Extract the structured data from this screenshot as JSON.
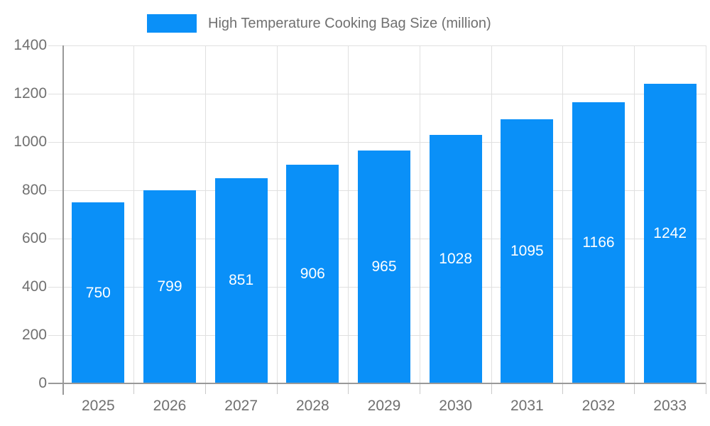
{
  "chart_data": {
    "type": "bar",
    "title": "High Temperature Cooking Bag Size (million)",
    "legend": [
      {
        "label": "High Temperature Cooking Bag Size (million)",
        "color": "#0a90f8"
      }
    ],
    "legend_position": "top",
    "categories": [
      "2025",
      "2026",
      "2027",
      "2028",
      "2029",
      "2030",
      "2031",
      "2032",
      "2033"
    ],
    "values": [
      750,
      799,
      851,
      906,
      965,
      1028,
      1095,
      1166,
      1242
    ],
    "value_labels": [
      "750",
      "799",
      "851",
      "906",
      "965",
      "1028",
      "1095",
      "1166",
      "1242"
    ],
    "xlabel": "",
    "ylabel": "",
    "ylim": [
      0,
      1400
    ],
    "yticks": [
      "0",
      "200",
      "400",
      "600",
      "800",
      "1000",
      "1200",
      "1400"
    ],
    "ytick_step": 200,
    "grid": true,
    "colors": {
      "bar": "#0a90f8",
      "bar_label": "#ffffff",
      "axis": "#999999",
      "gridline": "#e0e0e0",
      "tick_text": "#707070"
    }
  }
}
